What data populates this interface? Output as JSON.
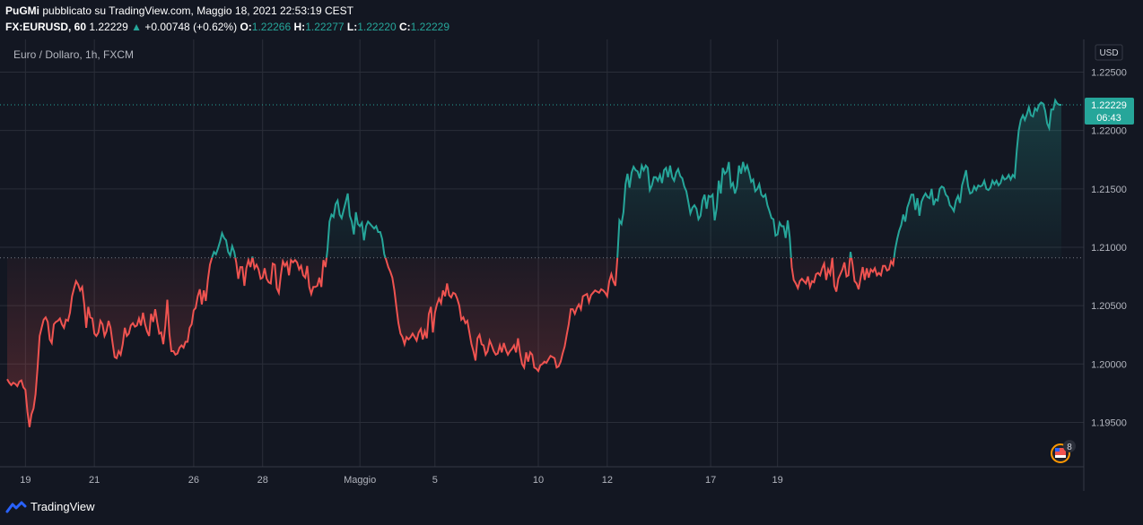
{
  "header": {
    "author": "PuGMi",
    "published_text": "pubblicato su TradingView.com, Maggio 18, 2021 22:53:19 CEST",
    "symbol": "FX:EURUSD, 60",
    "last": "1.22229",
    "change": "+0.00748 (+0.62%)",
    "o_label": "O:",
    "o_value": "1.22266",
    "h_label": "H:",
    "h_value": "1.22277",
    "l_label": "L:",
    "l_value": "1.22220",
    "c_label": "C:",
    "c_value": "1.22229"
  },
  "colors": {
    "background": "#131722",
    "up": "#26a69a",
    "down": "#ef5350",
    "grid": "#2a2e39",
    "text": "#b2b5be"
  },
  "chart_data": {
    "type": "line",
    "legend_text": "Euro / Dollaro, 1h, FXCM",
    "currency": "USD",
    "baseline": 1.2091,
    "last_price_label": "1.22229",
    "countdown_label": "06:43",
    "y_ticks": [
      "1.22500",
      "1.22000",
      "1.21500",
      "1.21000",
      "1.20500",
      "1.20000",
      "1.19500"
    ],
    "y_tick_values": [
      1.225,
      1.22,
      1.215,
      1.21,
      1.205,
      1.2,
      1.195
    ],
    "ylim": [
      1.1912,
      1.2278
    ],
    "x_ticks": [
      "19",
      "21",
      "26",
      "28",
      "Maggio",
      "5",
      "10",
      "12",
      "17",
      "19"
    ],
    "x_tick_idx": [
      9,
      43,
      92,
      126,
      174,
      211,
      262,
      296,
      347,
      380
    ],
    "series": [
      {
        "name": "EURUSD",
        "values": [
          1.1987,
          1.1984,
          1.1982,
          1.1984,
          1.1983,
          1.1981,
          1.1985,
          1.1986,
          1.198,
          1.1978,
          1.1959,
          1.1946,
          1.1957,
          1.1962,
          1.1974,
          1.1997,
          1.2024,
          1.2031,
          1.2038,
          1.204,
          1.2036,
          1.2021,
          1.2018,
          1.2034,
          1.2036,
          1.2037,
          1.2039,
          1.2034,
          1.2031,
          1.2038,
          1.2037,
          1.2044,
          1.2058,
          1.2065,
          1.2071,
          1.2068,
          1.2063,
          1.2066,
          1.2051,
          1.2031,
          1.2049,
          1.204,
          1.2039,
          1.2026,
          1.2024,
          1.2027,
          1.2037,
          1.2034,
          1.2024,
          1.2028,
          1.2037,
          1.2031,
          1.2018,
          1.2006,
          1.2005,
          1.2011,
          1.2008,
          1.2017,
          1.2031,
          1.2024,
          1.2026,
          1.2033,
          1.2035,
          1.2032,
          1.2033,
          1.2039,
          1.2033,
          1.2044,
          1.2034,
          1.2028,
          1.2024,
          1.2043,
          1.2036,
          1.2047,
          1.2036,
          1.2026,
          1.2027,
          1.2017,
          1.2033,
          1.2055,
          1.2026,
          1.2011,
          1.2011,
          1.2008,
          1.2009,
          1.2014,
          1.2016,
          1.2014,
          1.2019,
          1.2019,
          1.2031,
          1.2034,
          1.2046,
          1.2048,
          1.2058,
          1.2064,
          1.2051,
          1.2063,
          1.2054,
          1.2072,
          1.2085,
          1.2091,
          1.2096,
          1.2094,
          1.2099,
          1.2105,
          1.2112,
          1.2108,
          1.2106,
          1.2096,
          1.2093,
          1.2101,
          1.2096,
          1.2087,
          1.2073,
          1.2083,
          1.2083,
          1.2067,
          1.2082,
          1.2089,
          1.2083,
          1.2092,
          1.2082,
          1.2085,
          1.2081,
          1.2073,
          1.2074,
          1.2082,
          1.2073,
          1.207,
          1.2069,
          1.2086,
          1.2085,
          1.2065,
          1.2061,
          1.2076,
          1.2088,
          1.2084,
          1.2087,
          1.2076,
          1.2089,
          1.2087,
          1.2089,
          1.2087,
          1.2081,
          1.2084,
          1.2076,
          1.2074,
          1.2084,
          1.2066,
          1.206,
          1.2066,
          1.2066,
          1.2067,
          1.2074,
          1.2066,
          1.2089,
          1.2083,
          1.2098,
          1.2122,
          1.2128,
          1.2126,
          1.2137,
          1.214,
          1.2128,
          1.2125,
          1.2132,
          1.2139,
          1.2146,
          1.2127,
          1.2122,
          1.2111,
          1.213,
          1.212,
          1.2118,
          1.2121,
          1.2106,
          1.2118,
          1.2122,
          1.212,
          1.2118,
          1.2116,
          1.2118,
          1.2113,
          1.2113,
          1.2107,
          1.2094,
          1.2089,
          1.2083,
          1.2079,
          1.2074,
          1.2063,
          1.2049,
          1.2035,
          1.2026,
          1.2023,
          1.2017,
          1.2023,
          1.2021,
          1.2023,
          1.2026,
          1.2023,
          1.202,
          1.2027,
          1.203,
          1.2021,
          1.2028,
          1.2022,
          1.2043,
          1.2049,
          1.2027,
          1.2044,
          1.2051,
          1.2056,
          1.2052,
          1.2063,
          1.2058,
          1.2069,
          1.2059,
          1.2057,
          1.2061,
          1.206,
          1.2056,
          1.205,
          1.2038,
          1.204,
          1.2035,
          1.2037,
          1.2027,
          1.2017,
          1.2011,
          1.2003,
          1.2022,
          1.2025,
          1.2017,
          1.2016,
          1.2008,
          1.2011,
          1.202,
          1.2016,
          1.2011,
          1.2008,
          1.2009,
          1.2016,
          1.201,
          1.2018,
          1.2012,
          1.2008,
          1.2011,
          1.2013,
          1.2016,
          1.201,
          1.2022,
          1.2009,
          1.2,
          1.1997,
          1.201,
          1.2002,
          1.201,
          1.2008,
          1.1997,
          1.1996,
          1.1994,
          1.1999,
          1.2,
          1.2002,
          1.2001,
          1.2004,
          1.2007,
          1.2006,
          1.2005,
          1.1997,
          1.1998,
          1.2002,
          1.2009,
          1.2015,
          1.2025,
          1.2034,
          1.2047,
          1.2047,
          1.2043,
          1.2048,
          1.2051,
          1.2047,
          1.2058,
          1.2059,
          1.206,
          1.2053,
          1.2059,
          1.2061,
          1.2063,
          1.2062,
          1.2061,
          1.2064,
          1.2063,
          1.2061,
          1.2058,
          1.2071,
          1.2077,
          1.2071,
          1.2067,
          1.209,
          1.2123,
          1.212,
          1.213,
          1.2154,
          1.2163,
          1.2151,
          1.2164,
          1.2169,
          1.2166,
          1.2165,
          1.2159,
          1.217,
          1.2166,
          1.217,
          1.2168,
          1.2149,
          1.2153,
          1.216,
          1.216,
          1.2157,
          1.2162,
          1.2155,
          1.2166,
          1.2168,
          1.216,
          1.217,
          1.216,
          1.2157,
          1.2164,
          1.2167,
          1.2161,
          1.2159,
          1.2152,
          1.2148,
          1.2139,
          1.2129,
          1.2134,
          1.2136,
          1.2133,
          1.2124,
          1.2127,
          1.214,
          1.2145,
          1.2133,
          1.2144,
          1.2143,
          1.2145,
          1.2123,
          1.2134,
          1.2157,
          1.2146,
          1.2168,
          1.2163,
          1.2165,
          1.2173,
          1.2152,
          1.2155,
          1.2146,
          1.2152,
          1.217,
          1.2163,
          1.2173,
          1.2166,
          1.217,
          1.2164,
          1.2156,
          1.2158,
          1.2148,
          1.215,
          1.2154,
          1.2145,
          1.2143,
          1.2145,
          1.2136,
          1.2131,
          1.2125,
          1.2124,
          1.211,
          1.2111,
          1.2121,
          1.2118,
          1.2118,
          1.2108,
          1.2123,
          1.2109,
          1.2083,
          1.2072,
          1.2069,
          1.2065,
          1.2071,
          1.2073,
          1.2071,
          1.2069,
          1.2075,
          1.2066,
          1.2071,
          1.207,
          1.2077,
          1.2078,
          1.2076,
          1.2082,
          1.2086,
          1.2072,
          1.2081,
          1.2077,
          1.2091,
          1.2067,
          1.2062,
          1.2073,
          1.2077,
          1.2081,
          1.2087,
          1.2075,
          1.2076,
          1.2096,
          1.2085,
          1.2071,
          1.2069,
          1.2064,
          1.2074,
          1.2083,
          1.2072,
          1.2082,
          1.2074,
          1.2081,
          1.2079,
          1.2082,
          1.2076,
          1.2078,
          1.2076,
          1.2084,
          1.2084,
          1.208,
          1.2081,
          1.2088,
          1.2085,
          1.2098,
          1.2107,
          1.2114,
          1.2119,
          1.2128,
          1.2122,
          1.2134,
          1.2139,
          1.2145,
          1.2145,
          1.2132,
          1.2142,
          1.2127,
          1.2139,
          1.2143,
          1.2146,
          1.2143,
          1.2142,
          1.215,
          1.2136,
          1.2141,
          1.214,
          1.215,
          1.2152,
          1.2151,
          1.2145,
          1.2143,
          1.2136,
          1.2134,
          1.2131,
          1.214,
          1.2144,
          1.2138,
          1.2153,
          1.2159,
          1.2166,
          1.2152,
          1.2146,
          1.2147,
          1.2152,
          1.2149,
          1.2153,
          1.2152,
          1.2153,
          1.2157,
          1.215,
          1.2149,
          1.2151,
          1.2157,
          1.2154,
          1.2157,
          1.2153,
          1.2155,
          1.2161,
          1.2158,
          1.2159,
          1.2162,
          1.2158,
          1.2162,
          1.216,
          1.2183,
          1.22,
          1.2209,
          1.2213,
          1.2209,
          1.2214,
          1.222,
          1.2213,
          1.2212,
          1.2219,
          1.2217,
          1.2222,
          1.2224,
          1.2223,
          1.2217,
          1.2206,
          1.2202,
          1.2218,
          1.2218,
          1.2226,
          1.2223,
          1.2222,
          1.2222
        ]
      }
    ],
    "grid": true
  },
  "footer": {
    "brand": "TradingView",
    "badge_count": "8"
  }
}
